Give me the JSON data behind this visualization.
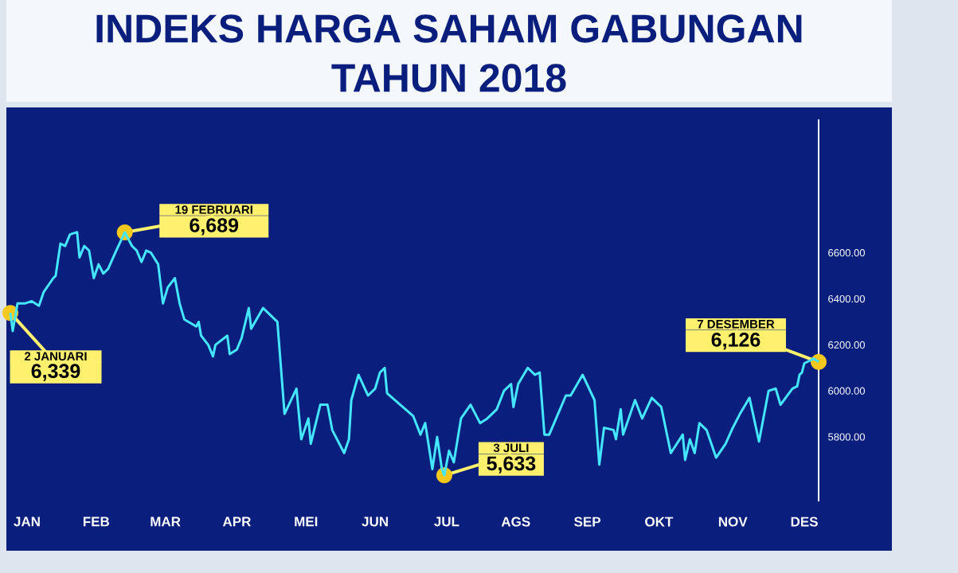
{
  "chart_data": {
    "type": "line",
    "title": "INDEKS HARGA SAHAM GABUNGAN",
    "subtitle": "TAHUN 2018",
    "xlim": [
      "2018-01-01",
      "2018-12-07"
    ],
    "ylim": [
      5520,
      7180
    ],
    "xticks": [
      {
        "value": "2018-01-09",
        "label": "JAN"
      },
      {
        "value": "2018-02-07",
        "label": "FEB"
      },
      {
        "value": "2018-03-08",
        "label": "MAR"
      },
      {
        "value": "2018-04-07",
        "label": "APR"
      },
      {
        "value": "2018-05-06",
        "label": "MEI"
      },
      {
        "value": "2018-06-04",
        "label": "JUN"
      },
      {
        "value": "2018-07-04",
        "label": "JUL"
      },
      {
        "value": "2018-08-02",
        "label": "AGS"
      },
      {
        "value": "2018-09-01",
        "label": "SEP"
      },
      {
        "value": "2018-10-01",
        "label": "OKT"
      },
      {
        "value": "2018-11-01",
        "label": "NOV"
      },
      {
        "value": "2018-12-01",
        "label": "DES"
      }
    ],
    "yticks": [
      {
        "value": 5800,
        "label": "5800.00"
      },
      {
        "value": 6000,
        "label": "6000.00"
      },
      {
        "value": 6200,
        "label": "6200.00"
      },
      {
        "value": 6400,
        "label": "6400.00"
      },
      {
        "value": 6600,
        "label": "6600.00"
      }
    ],
    "x": [
      "2018-01-02",
      "2018-01-03",
      "2018-01-05",
      "2018-01-08",
      "2018-01-11",
      "2018-01-14",
      "2018-01-16",
      "2018-01-20",
      "2018-01-21",
      "2018-01-23",
      "2018-01-25",
      "2018-01-27",
      "2018-01-30",
      "2018-01-31",
      "2018-02-02",
      "2018-02-04",
      "2018-02-06",
      "2018-02-08",
      "2018-02-10",
      "2018-02-12",
      "2018-02-15",
      "2018-02-19",
      "2018-02-22",
      "2018-02-24",
      "2018-02-26",
      "2018-02-28",
      "2018-03-02",
      "2018-03-05",
      "2018-03-07",
      "2018-03-09",
      "2018-03-12",
      "2018-03-14",
      "2018-03-16",
      "2018-03-21",
      "2018-03-22",
      "2018-03-23",
      "2018-03-26",
      "2018-03-28",
      "2018-03-29",
      "2018-04-03",
      "2018-04-04",
      "2018-04-07",
      "2018-04-09",
      "2018-04-12",
      "2018-04-13",
      "2018-04-18",
      "2018-04-24",
      "2018-04-27",
      "2018-05-02",
      "2018-05-04",
      "2018-05-07",
      "2018-05-08",
      "2018-05-12",
      "2018-05-15",
      "2018-05-17",
      "2018-05-22",
      "2018-05-24",
      "2018-05-25",
      "2018-05-28",
      "2018-06-01",
      "2018-06-04",
      "2018-06-06",
      "2018-06-08",
      "2018-06-09",
      "2018-06-20",
      "2018-06-23",
      "2018-06-25",
      "2018-06-28",
      "2018-06-30",
      "2018-07-02",
      "2018-07-03",
      "2018-07-05",
      "2018-07-07",
      "2018-07-10",
      "2018-07-14",
      "2018-07-18",
      "2018-07-21",
      "2018-07-25",
      "2018-07-28",
      "2018-07-31",
      "2018-08-01",
      "2018-08-03",
      "2018-08-07",
      "2018-08-10",
      "2018-08-12",
      "2018-08-14",
      "2018-08-16",
      "2018-08-23",
      "2018-08-25",
      "2018-08-30",
      "2018-09-04",
      "2018-09-06",
      "2018-09-08",
      "2018-09-12",
      "2018-09-13",
      "2018-09-15",
      "2018-09-16",
      "2018-09-21",
      "2018-09-24",
      "2018-09-28",
      "2018-10-02",
      "2018-10-06",
      "2018-10-11",
      "2018-10-12",
      "2018-10-14",
      "2018-10-16",
      "2018-10-18",
      "2018-10-21",
      "2018-10-25",
      "2018-10-29",
      "2018-11-01",
      "2018-11-04",
      "2018-11-08",
      "2018-11-12",
      "2018-11-16",
      "2018-11-19",
      "2018-11-21",
      "2018-11-26",
      "2018-11-28",
      "2018-11-29",
      "2018-11-30",
      "2018-12-01",
      "2018-12-05",
      "2018-12-07"
    ],
    "series": [
      {
        "color": "#45e6ff",
        "values": [
          6339,
          6260,
          6380,
          6380,
          6390,
          6370,
          6430,
          6490,
          6500,
          6640,
          6630,
          6680,
          6690,
          6580,
          6630,
          6610,
          6490,
          6550,
          6510,
          6530,
          6600,
          6689,
          6630,
          6610,
          6560,
          6610,
          6600,
          6550,
          6380,
          6450,
          6490,
          6380,
          6310,
          6280,
          6300,
          6240,
          6200,
          6150,
          6200,
          6240,
          6160,
          6180,
          6230,
          6360,
          6270,
          6360,
          6300,
          5900,
          6010,
          5790,
          5880,
          5770,
          5940,
          5940,
          5830,
          5730,
          5790,
          5960,
          6070,
          5980,
          6010,
          6080,
          6100,
          5990,
          5890,
          5810,
          5860,
          5660,
          5800,
          5660,
          5633,
          5740,
          5690,
          5880,
          5940,
          5860,
          5880,
          5920,
          6000,
          6030,
          5930,
          6030,
          6100,
          6070,
          6080,
          5810,
          5810,
          5980,
          5980,
          6070,
          5960,
          5680,
          5840,
          5830,
          5790,
          5920,
          5810,
          5960,
          5880,
          5970,
          5930,
          5730,
          5810,
          5700,
          5790,
          5730,
          5860,
          5830,
          5710,
          5770,
          5840,
          5900,
          5970,
          5780,
          6000,
          6010,
          5940,
          6010,
          6020,
          6070,
          6080,
          6120,
          6140,
          6126
        ]
      }
    ],
    "annotations": [
      {
        "text": "2 JANUARI",
        "x": "2018-01-02",
        "y": 6339
      },
      {
        "text": "6,339",
        "x": "2018-01-02",
        "y": 6339
      },
      {
        "text": "19 FEBRUARI",
        "x": "2018-02-19",
        "y": 6689
      },
      {
        "text": "6,689",
        "x": "2018-02-19",
        "y": 6689
      },
      {
        "text": "3 JULI",
        "x": "2018-07-03",
        "y": 5633
      },
      {
        "text": "5,633",
        "x": "2018-07-03",
        "y": 5633
      },
      {
        "text": "7 DESEMBER",
        "x": "2018-12-07",
        "y": 6126
      },
      {
        "text": "6,126",
        "x": "2018-12-07",
        "y": 6126
      }
    ],
    "line_style": "solid",
    "marker": "none"
  }
}
